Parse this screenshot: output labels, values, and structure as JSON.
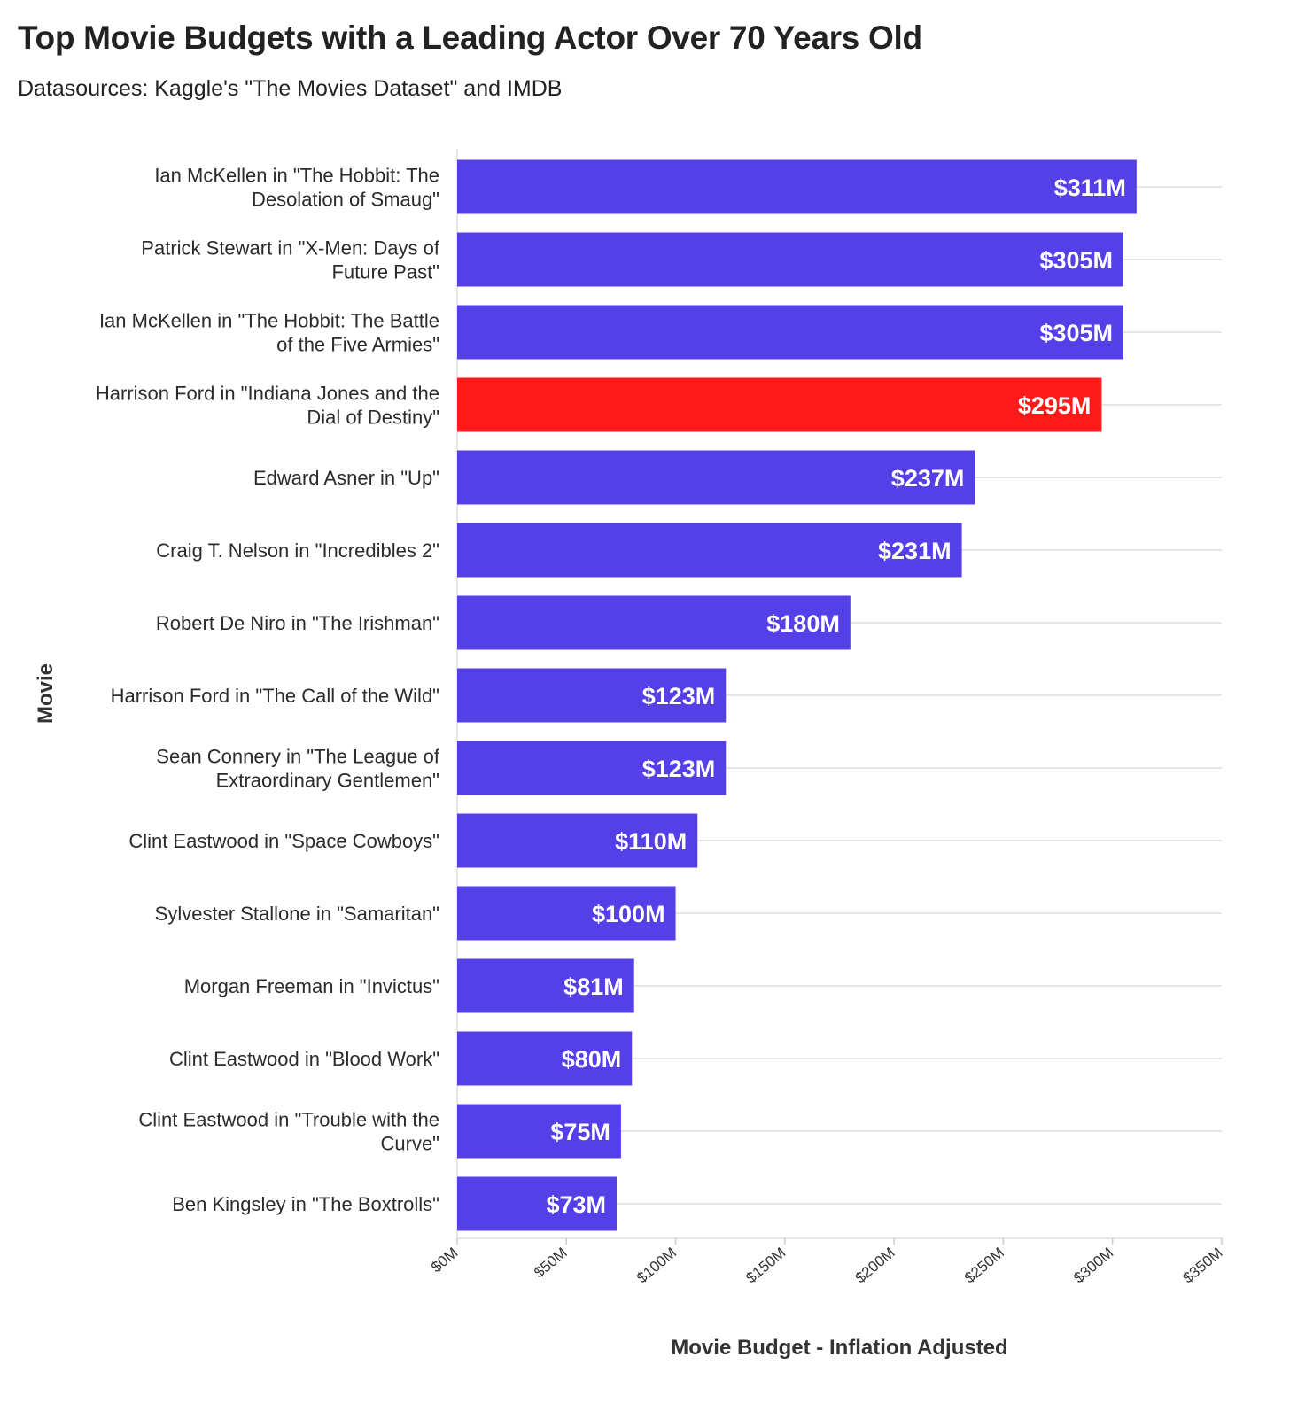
{
  "title": "Top Movie Budgets with a Leading Actor Over 70 Years Old",
  "subtitle": "Datasources: Kaggle's \"The Movies Dataset\" and IMDB",
  "colors": {
    "default_bar": "#5540e8",
    "highlight_bar": "#ff1a1a",
    "grid": "#e6e6e6",
    "axis": "#cccccc"
  },
  "chart_data": {
    "type": "bar",
    "orientation": "horizontal",
    "xlabel": "Movie Budget - Inflation Adjusted",
    "ylabel": "Movie",
    "xlim": [
      0,
      350
    ],
    "x_unit": "million USD",
    "xticks": [
      0,
      50,
      100,
      150,
      200,
      250,
      300,
      350
    ],
    "xtick_labels": [
      "$0M",
      "$50M",
      "$100M",
      "$150M",
      "$200M",
      "$250M",
      "$300M",
      "$350M"
    ],
    "grid": true,
    "highlight_index": 3,
    "categories": [
      [
        "Ian McKellen in \"The Hobbit: The",
        "Desolation of Smaug\""
      ],
      [
        "Patrick Stewart in \"X-Men: Days of",
        "Future Past\""
      ],
      [
        "Ian McKellen in \"The Hobbit: The Battle",
        "of the Five Armies\""
      ],
      [
        "Harrison Ford in \"Indiana Jones and the",
        "Dial of Destiny\""
      ],
      [
        "Edward Asner in \"Up\""
      ],
      [
        "Craig T. Nelson in \"Incredibles 2\""
      ],
      [
        "Robert De Niro in \"The Irishman\""
      ],
      [
        "Harrison Ford in \"The Call of the Wild\""
      ],
      [
        "Sean Connery in \"The League of",
        "Extraordinary Gentlemen\""
      ],
      [
        "Clint Eastwood in \"Space Cowboys\""
      ],
      [
        "Sylvester Stallone in \"Samaritan\""
      ],
      [
        "Morgan Freeman in \"Invictus\""
      ],
      [
        "Clint Eastwood in \"Blood Work\""
      ],
      [
        "Clint Eastwood in \"Trouble with the",
        "Curve\""
      ],
      [
        "Ben Kingsley in \"The Boxtrolls\""
      ]
    ],
    "values": [
      311,
      305,
      305,
      295,
      237,
      231,
      180,
      123,
      123,
      110,
      100,
      81,
      80,
      75,
      73
    ],
    "data_labels": [
      "$311M",
      "$305M",
      "$305M",
      "$295M",
      "$237M",
      "$231M",
      "$180M",
      "$123M",
      "$123M",
      "$110M",
      "$100M",
      "$81M",
      "$80M",
      "$75M",
      "$73M"
    ]
  }
}
